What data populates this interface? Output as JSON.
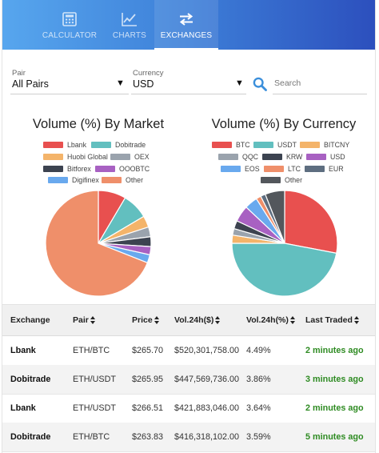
{
  "nav": {
    "tabs": [
      {
        "label": "CALCULATOR",
        "icon": "calculator-icon",
        "active": false
      },
      {
        "label": "CHARTS",
        "icon": "line-chart-icon",
        "active": false
      },
      {
        "label": "EXCHANGES",
        "icon": "exchange-arrows-icon",
        "active": true
      }
    ]
  },
  "filters": {
    "pair_label": "Pair",
    "pair_value": "All Pairs",
    "currency_label": "Currency",
    "currency_value": "USD",
    "search_placeholder": "Search"
  },
  "charts": {
    "market": {
      "title": "Volume (%) By Market",
      "legend": [
        {
          "label": "Lbank",
          "color": "#e8504f"
        },
        {
          "label": "Dobitrade",
          "color": "#62bfbf"
        },
        {
          "label": "Huobi Global",
          "color": "#f4b46a"
        },
        {
          "label": "OEX",
          "color": "#9aa3ad"
        },
        {
          "label": "Bitforex",
          "color": "#3c4350"
        },
        {
          "label": "OOOBTC",
          "color": "#a861c2"
        },
        {
          "label": "Digifinex",
          "color": "#69a9ee"
        },
        {
          "label": "Other",
          "color": "#ef8f6a"
        }
      ]
    },
    "currency": {
      "title": "Volume (%) By Currency",
      "legend": [
        {
          "label": "BTC",
          "color": "#e8504f"
        },
        {
          "label": "USDT",
          "color": "#62bfbf"
        },
        {
          "label": "BITCNY",
          "color": "#f4b46a"
        },
        {
          "label": "QQC",
          "color": "#9aa3ad"
        },
        {
          "label": "KRW",
          "color": "#3c4350"
        },
        {
          "label": "USD",
          "color": "#a861c2"
        },
        {
          "label": "EOS",
          "color": "#69a9ee"
        },
        {
          "label": "LTC",
          "color": "#ef8f6a"
        },
        {
          "label": "EUR",
          "color": "#5e6e80"
        },
        {
          "label": "Other",
          "color": "#53575c"
        }
      ]
    }
  },
  "chart_data": [
    {
      "type": "pie",
      "title": "Volume (%) By Market",
      "categories": [
        "Lbank",
        "Dobitrade",
        "Huobi Global",
        "OEX",
        "Bitforex",
        "OOOBTC",
        "Digifinex",
        "Other"
      ],
      "values": [
        8.5,
        8.0,
        3.5,
        3.0,
        3.0,
        2.5,
        2.5,
        69.0
      ],
      "colors": [
        "#e8504f",
        "#62bfbf",
        "#f4b46a",
        "#9aa3ad",
        "#3c4350",
        "#a861c2",
        "#69a9ee",
        "#ef8f6a"
      ]
    },
    {
      "type": "pie",
      "title": "Volume (%) By Currency",
      "categories": [
        "BTC",
        "USDT",
        "BITCNY",
        "QQC",
        "KRW",
        "USD",
        "EOS",
        "LTC",
        "EUR",
        "Other"
      ],
      "values": [
        28.0,
        47.0,
        2.5,
        2.0,
        2.5,
        5.0,
        4.0,
        1.5,
        1.5,
        6.0
      ],
      "colors": [
        "#e8504f",
        "#62bfbf",
        "#f4b46a",
        "#9aa3ad",
        "#3c4350",
        "#a861c2",
        "#69a9ee",
        "#ef8f6a",
        "#5e6e80",
        "#53575c"
      ]
    }
  ],
  "table": {
    "headers": [
      "Exchange",
      "Pair",
      "Price",
      "Vol.24h($)",
      "Vol.24h(%)",
      "Last Traded"
    ],
    "rows": [
      {
        "exchange": "Lbank",
        "pair": "ETH/BTC",
        "price": "$265.70",
        "vol_usd": "$520,301,758.00",
        "vol_pct": "4.49%",
        "last_traded": "2 minutes ago"
      },
      {
        "exchange": "Dobitrade",
        "pair": "ETH/USDT",
        "price": "$265.95",
        "vol_usd": "$447,569,736.00",
        "vol_pct": "3.86%",
        "last_traded": "3 minutes ago"
      },
      {
        "exchange": "Lbank",
        "pair": "ETH/USDT",
        "price": "$266.51",
        "vol_usd": "$421,883,046.00",
        "vol_pct": "3.64%",
        "last_traded": "2 minutes ago"
      },
      {
        "exchange": "Dobitrade",
        "pair": "ETH/BTC",
        "price": "$263.83",
        "vol_usd": "$416,318,102.00",
        "vol_pct": "3.59%",
        "last_traded": "5 minutes ago"
      }
    ]
  }
}
